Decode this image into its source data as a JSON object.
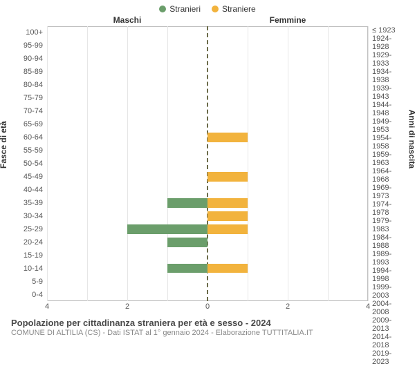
{
  "chart": {
    "type": "population-pyramid",
    "background_color": "#ffffff",
    "grid_color": "#e6e6e6",
    "border_color": "#bfbfbf",
    "center_line_color": "#6b6b4a",
    "text_color": "#333333",
    "tick_color": "#555555",
    "legend": {
      "male": {
        "label": "Stranieri",
        "color": "#6b9e6b"
      },
      "female": {
        "label": "Straniere",
        "color": "#f2b33d"
      }
    },
    "headers": {
      "left": "Maschi",
      "right": "Femmine"
    },
    "axis_titles": {
      "left": "Fasce di età",
      "right": "Anni di nascita"
    },
    "xaxis": {
      "max": 4,
      "ticks": [
        4,
        2,
        0,
        2,
        4
      ]
    },
    "bar_fill_male": "#6b9e6b",
    "bar_fill_female": "#f2b33d",
    "label_fontsize": 11,
    "header_fontsize": 12,
    "rows": [
      {
        "age": "100+",
        "birth": "≤ 1923",
        "m": 0,
        "f": 0
      },
      {
        "age": "95-99",
        "birth": "1924-1928",
        "m": 0,
        "f": 0
      },
      {
        "age": "90-94",
        "birth": "1929-1933",
        "m": 0,
        "f": 0
      },
      {
        "age": "85-89",
        "birth": "1934-1938",
        "m": 0,
        "f": 0
      },
      {
        "age": "80-84",
        "birth": "1939-1943",
        "m": 0,
        "f": 0
      },
      {
        "age": "75-79",
        "birth": "1944-1948",
        "m": 0,
        "f": 0
      },
      {
        "age": "70-74",
        "birth": "1949-1953",
        "m": 0,
        "f": 0
      },
      {
        "age": "65-69",
        "birth": "1954-1958",
        "m": 0,
        "f": 0
      },
      {
        "age": "60-64",
        "birth": "1959-1963",
        "m": 0,
        "f": 1
      },
      {
        "age": "55-59",
        "birth": "1964-1968",
        "m": 0,
        "f": 0
      },
      {
        "age": "50-54",
        "birth": "1969-1973",
        "m": 0,
        "f": 0
      },
      {
        "age": "45-49",
        "birth": "1974-1978",
        "m": 0,
        "f": 1
      },
      {
        "age": "40-44",
        "birth": "1979-1983",
        "m": 0,
        "f": 0
      },
      {
        "age": "35-39",
        "birth": "1984-1988",
        "m": 1,
        "f": 1
      },
      {
        "age": "30-34",
        "birth": "1989-1993",
        "m": 0,
        "f": 1
      },
      {
        "age": "25-29",
        "birth": "1994-1998",
        "m": 2,
        "f": 1
      },
      {
        "age": "20-24",
        "birth": "1999-2003",
        "m": 1,
        "f": 0
      },
      {
        "age": "15-19",
        "birth": "2004-2008",
        "m": 0,
        "f": 0
      },
      {
        "age": "10-14",
        "birth": "2009-2013",
        "m": 1,
        "f": 1
      },
      {
        "age": "5-9",
        "birth": "2014-2018",
        "m": 0,
        "f": 0
      },
      {
        "age": "0-4",
        "birth": "2019-2023",
        "m": 0,
        "f": 0
      }
    ]
  },
  "caption": {
    "title": "Popolazione per cittadinanza straniera per età e sesso - 2024",
    "subtitle": "COMUNE DI ALTILIA (CS) - Dati ISTAT al 1° gennaio 2024 - Elaborazione TUTTITALIA.IT"
  }
}
